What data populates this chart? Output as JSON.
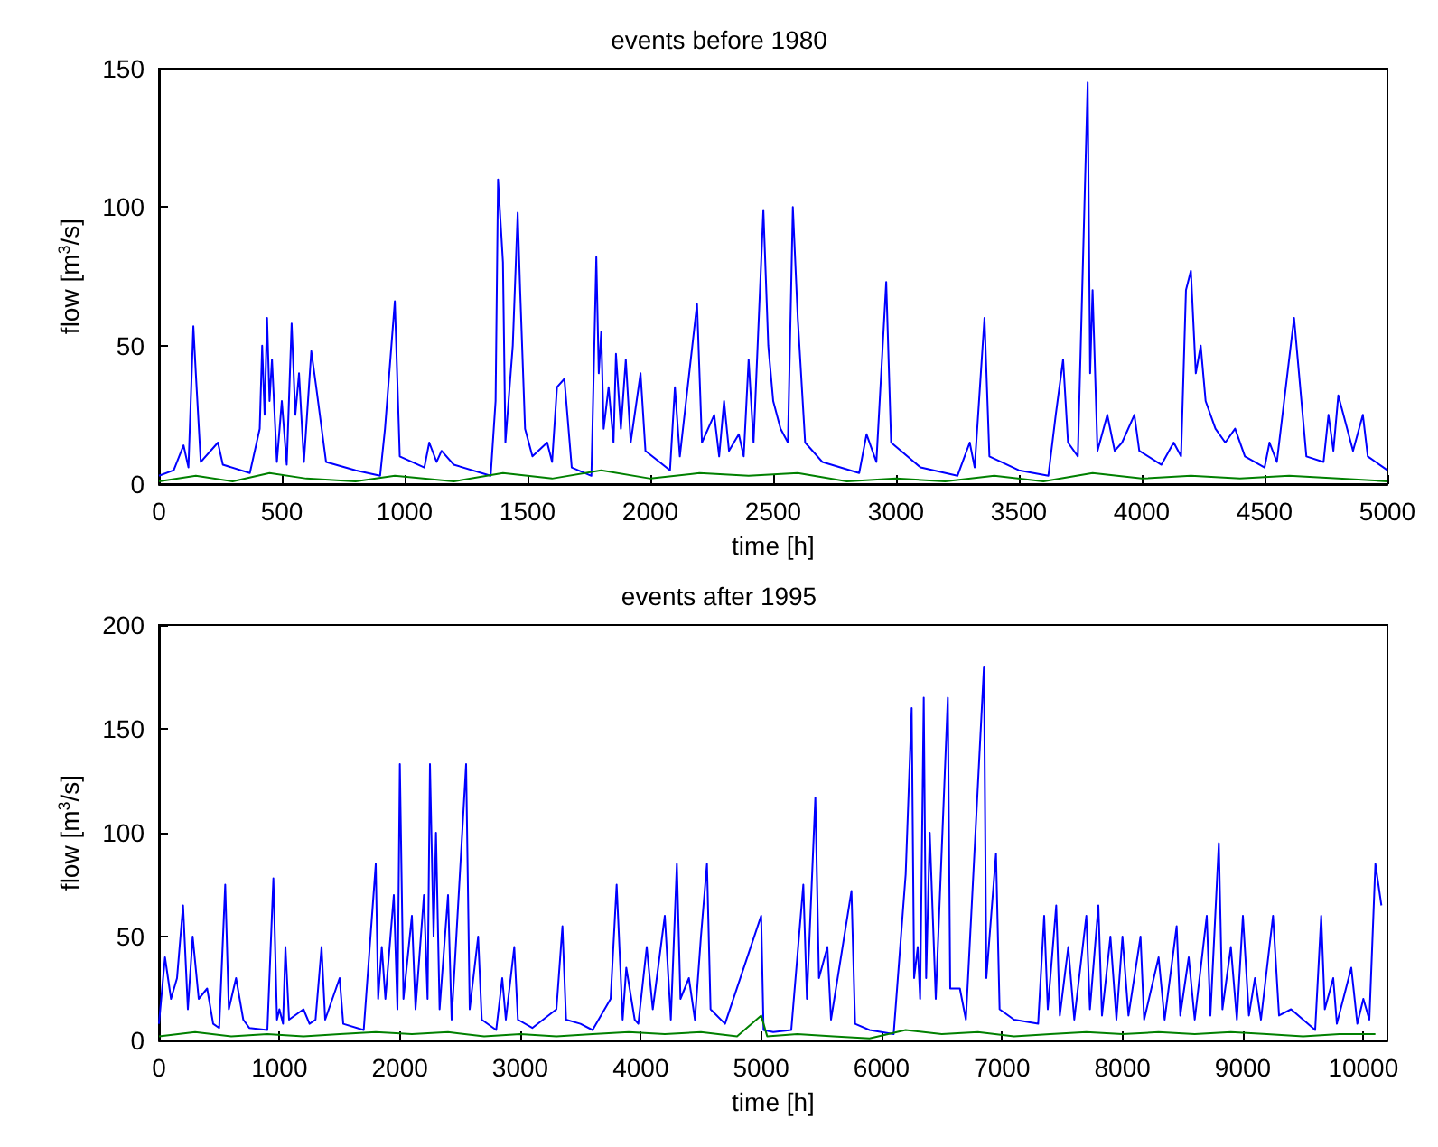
{
  "chart_data": [
    {
      "type": "line",
      "title": "events before 1980",
      "xlabel": "time [h]",
      "ylabel": "flow [m$^{3}$/s]",
      "xlim": [
        0,
        5000
      ],
      "xticks": [
        0,
        500,
        1000,
        1500,
        2000,
        2500,
        3000,
        3500,
        4000,
        4500,
        5000
      ],
      "ylim": [
        0,
        150
      ],
      "yticks": [
        0,
        50,
        100,
        150
      ],
      "grid": false,
      "marker": "none",
      "line_style": "solid",
      "series": [
        {
          "color": "#0000ff",
          "x": [
            0,
            60,
            100,
            120,
            140,
            150,
            170,
            240,
            260,
            370,
            410,
            420,
            430,
            440,
            450,
            460,
            480,
            500,
            520,
            540,
            555,
            570,
            590,
            620,
            640,
            680,
            800,
            900,
            920,
            960,
            980,
            1080,
            1100,
            1130,
            1150,
            1200,
            1350,
            1370,
            1380,
            1400,
            1410,
            1440,
            1460,
            1470,
            1490,
            1520,
            1580,
            1600,
            1620,
            1650,
            1680,
            1760,
            1780,
            1790,
            1800,
            1810,
            1830,
            1850,
            1860,
            1880,
            1900,
            1920,
            1960,
            1980,
            2080,
            2100,
            2120,
            2190,
            2210,
            2260,
            2280,
            2300,
            2320,
            2360,
            2380,
            2400,
            2420,
            2460,
            2480,
            2500,
            2530,
            2560,
            2580,
            2600,
            2630,
            2700,
            2850,
            2880,
            2920,
            2960,
            2980,
            3100,
            3250,
            3300,
            3320,
            3360,
            3380,
            3500,
            3620,
            3650,
            3680,
            3700,
            3740,
            3780,
            3790,
            3800,
            3820,
            3860,
            3890,
            3920,
            3970,
            3990,
            4080,
            4130,
            4160,
            4180,
            4200,
            4220,
            4240,
            4260,
            4300,
            4340,
            4380,
            4420,
            4500,
            4520,
            4550,
            4620,
            4640,
            4670,
            4740,
            4760,
            4780,
            4800,
            4830,
            4860,
            4900,
            4920,
            5000
          ],
          "values": [
            3,
            5,
            14,
            6,
            57,
            40,
            8,
            15,
            7,
            4,
            20,
            50,
            25,
            60,
            30,
            45,
            8,
            30,
            7,
            58,
            25,
            40,
            8,
            48,
            35,
            8,
            5,
            3,
            20,
            66,
            10,
            6,
            15,
            8,
            12,
            7,
            3,
            30,
            110,
            80,
            15,
            50,
            98,
            70,
            20,
            10,
            15,
            8,
            35,
            38,
            6,
            3,
            82,
            40,
            55,
            20,
            35,
            15,
            47,
            20,
            45,
            15,
            40,
            12,
            5,
            35,
            10,
            65,
            15,
            25,
            10,
            30,
            12,
            18,
            10,
            45,
            15,
            99,
            50,
            30,
            20,
            15,
            100,
            60,
            15,
            8,
            4,
            18,
            8,
            73,
            15,
            6,
            3,
            15,
            6,
            60,
            10,
            5,
            3,
            25,
            45,
            15,
            10,
            145,
            40,
            70,
            12,
            25,
            12,
            15,
            25,
            12,
            7,
            15,
            10,
            70,
            77,
            40,
            50,
            30,
            20,
            15,
            20,
            10,
            6,
            15,
            8,
            60,
            40,
            10,
            8,
            25,
            12,
            32,
            22,
            12,
            25,
            10,
            5
          ]
        },
        {
          "color": "#008000",
          "x": [
            0,
            150,
            300,
            450,
            600,
            800,
            960,
            1200,
            1400,
            1600,
            1800,
            2000,
            2200,
            2400,
            2600,
            2800,
            3000,
            3200,
            3400,
            3600,
            3800,
            4000,
            4200,
            4400,
            4600,
            4800,
            5000
          ],
          "values": [
            1,
            3,
            1,
            4,
            2,
            1,
            3,
            1,
            4,
            2,
            5,
            2,
            4,
            3,
            4,
            1,
            2,
            1,
            3,
            1,
            4,
            2,
            3,
            2,
            3,
            2,
            1
          ]
        }
      ]
    },
    {
      "type": "line",
      "title": "events after 1995",
      "xlabel": "time [h]",
      "ylabel": "flow [m$^{3}$/s]",
      "xlim": [
        0,
        10200
      ],
      "xticks": [
        0,
        1000,
        2000,
        3000,
        4000,
        5000,
        6000,
        7000,
        8000,
        9000,
        10000
      ],
      "ylim": [
        0,
        200
      ],
      "yticks": [
        0,
        50,
        100,
        150,
        200
      ],
      "grid": false,
      "marker": "none",
      "line_style": "solid",
      "series": [
        {
          "color": "#0000ff",
          "x": [
            0,
            50,
            100,
            150,
            200,
            240,
            280,
            330,
            400,
            450,
            500,
            550,
            580,
            600,
            640,
            700,
            750,
            900,
            950,
            980,
            1000,
            1030,
            1050,
            1080,
            1200,
            1250,
            1300,
            1350,
            1380,
            1500,
            1530,
            1700,
            1800,
            1820,
            1850,
            1880,
            1950,
            1980,
            2000,
            2030,
            2100,
            2130,
            2200,
            2230,
            2250,
            2280,
            2300,
            2330,
            2400,
            2430,
            2550,
            2580,
            2650,
            2680,
            2800,
            2850,
            2880,
            2950,
            2980,
            3100,
            3300,
            3350,
            3380,
            3500,
            3600,
            3750,
            3800,
            3850,
            3880,
            3950,
            3980,
            4050,
            4100,
            4200,
            4250,
            4300,
            4330,
            4400,
            4450,
            4500,
            4550,
            4580,
            4700,
            5000,
            5020,
            5100,
            5250,
            5350,
            5380,
            5450,
            5480,
            5550,
            5580,
            5750,
            5780,
            5900,
            6100,
            6200,
            6250,
            6270,
            6300,
            6320,
            6350,
            6370,
            6400,
            6450,
            6550,
            6570,
            6650,
            6700,
            6850,
            6870,
            6950,
            6980,
            7100,
            7300,
            7350,
            7380,
            7450,
            7480,
            7550,
            7600,
            7700,
            7730,
            7800,
            7830,
            7900,
            7950,
            8000,
            8050,
            8150,
            8180,
            8300,
            8350,
            8450,
            8480,
            8550,
            8600,
            8700,
            8730,
            8800,
            8830,
            8900,
            8950,
            9000,
            9050,
            9100,
            9150,
            9250,
            9300,
            9400,
            9600,
            9650,
            9680,
            9750,
            9780,
            9900,
            9950,
            10000,
            10050,
            10100,
            10150
          ],
          "values": [
            8,
            40,
            20,
            30,
            65,
            15,
            50,
            20,
            25,
            8,
            6,
            75,
            15,
            20,
            30,
            10,
            6,
            5,
            78,
            10,
            15,
            8,
            45,
            10,
            15,
            8,
            10,
            45,
            10,
            30,
            8,
            5,
            85,
            20,
            45,
            20,
            70,
            15,
            133,
            20,
            60,
            15,
            70,
            20,
            133,
            50,
            100,
            15,
            70,
            10,
            133,
            15,
            50,
            10,
            5,
            30,
            10,
            45,
            10,
            6,
            15,
            55,
            10,
            8,
            5,
            20,
            75,
            10,
            35,
            10,
            8,
            45,
            15,
            60,
            10,
            85,
            20,
            30,
            10,
            50,
            85,
            15,
            8,
            60,
            5,
            4,
            5,
            75,
            20,
            117,
            30,
            45,
            10,
            72,
            8,
            5,
            3,
            80,
            160,
            30,
            45,
            20,
            165,
            30,
            100,
            20,
            165,
            25,
            25,
            10,
            180,
            30,
            90,
            15,
            10,
            8,
            60,
            15,
            65,
            12,
            45,
            10,
            60,
            15,
            65,
            12,
            50,
            10,
            50,
            12,
            50,
            10,
            40,
            10,
            55,
            12,
            40,
            10,
            60,
            12,
            95,
            15,
            45,
            10,
            60,
            12,
            30,
            10,
            60,
            12,
            15,
            5,
            60,
            15,
            30,
            8,
            35,
            8,
            20,
            10,
            85,
            65
          ]
        },
        {
          "color": "#008000",
          "x": [
            0,
            300,
            600,
            900,
            1200,
            1500,
            1800,
            2100,
            2400,
            2700,
            3000,
            3300,
            3600,
            3900,
            4200,
            4500,
            4800,
            5000,
            5050,
            5300,
            5600,
            5900,
            6200,
            6500,
            6800,
            7100,
            7400,
            7700,
            8000,
            8300,
            8600,
            8900,
            9200,
            9500,
            9800,
            10100
          ],
          "values": [
            2,
            4,
            2,
            3,
            2,
            3,
            4,
            3,
            4,
            2,
            3,
            2,
            3,
            4,
            3,
            4,
            2,
            12,
            2,
            3,
            2,
            1,
            5,
            3,
            4,
            2,
            3,
            4,
            3,
            4,
            3,
            4,
            3,
            2,
            3,
            3
          ]
        }
      ]
    }
  ]
}
